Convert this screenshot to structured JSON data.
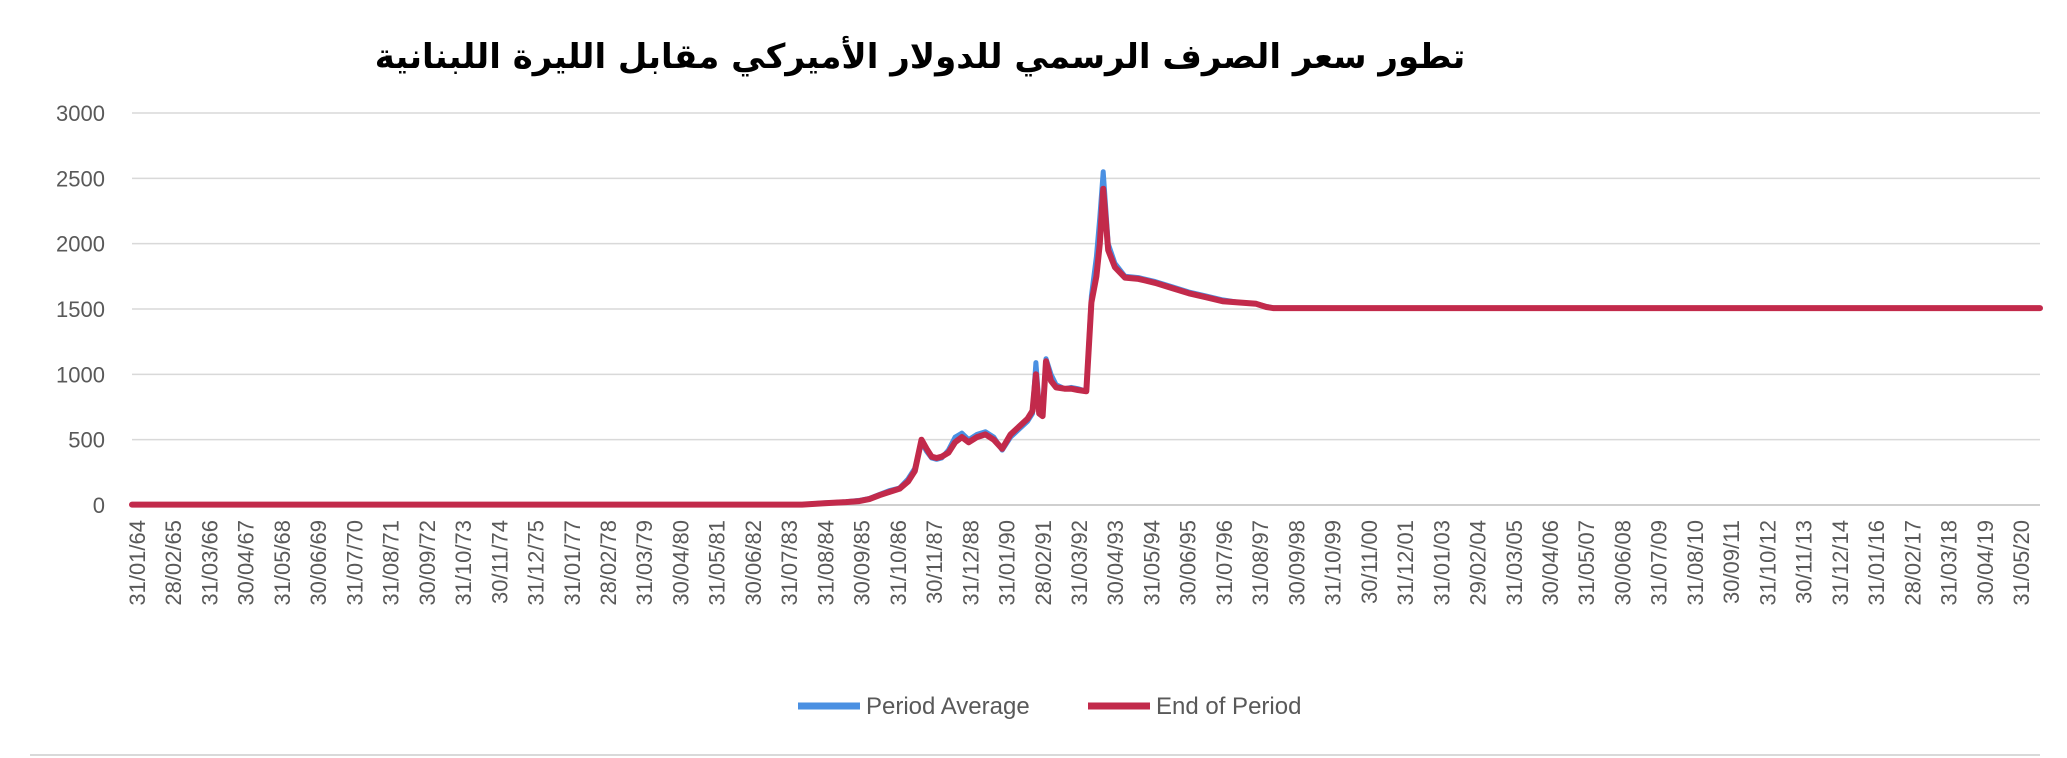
{
  "chart_data": {
    "type": "line",
    "title": "تطور سعر الصرف الرسمي للدولار الأميركي مقابل الليرة اللبنانية",
    "xlabel": "",
    "ylabel": "",
    "ylim": [
      0,
      3000
    ],
    "yticks": [
      "0",
      "500",
      "1000",
      "1500",
      "2000",
      "2500",
      "3000"
    ],
    "grid": true,
    "legend_position": "bottom",
    "xtick_labels": [
      "31/01/64",
      "28/02/65",
      "31/03/66",
      "30/04/67",
      "31/05/68",
      "30/06/69",
      "31/07/70",
      "31/08/71",
      "30/09/72",
      "31/10/73",
      "30/11/74",
      "31/12/75",
      "31/01/77",
      "28/02/78",
      "31/03/79",
      "30/04/80",
      "31/05/81",
      "30/06/82",
      "31/07/83",
      "31/08/84",
      "30/09/85",
      "31/10/86",
      "30/11/87",
      "31/12/88",
      "31/01/90",
      "28/02/91",
      "31/03/92",
      "30/04/93",
      "31/05/94",
      "30/06/95",
      "31/07/96",
      "31/08/97",
      "30/09/98",
      "31/10/99",
      "30/11/00",
      "31/12/01",
      "31/01/03",
      "29/02/04",
      "31/03/05",
      "30/04/06",
      "31/05/07",
      "30/06/08",
      "31/07/09",
      "31/08/10",
      "30/09/11",
      "31/10/12",
      "30/11/13",
      "31/12/14",
      "31/01/16",
      "28/02/17",
      "31/03/18",
      "30/04/19",
      "31/05/20"
    ],
    "series": [
      {
        "name": "Period Average",
        "color": "#4a90e2",
        "x": [
          1964.08,
          1984.0,
          1984.6,
          1985.0,
          1985.3,
          1985.7,
          1986.0,
          1986.3,
          1986.6,
          1986.9,
          1987.15,
          1987.35,
          1987.55,
          1987.7,
          1987.85,
          1988.0,
          1988.15,
          1988.35,
          1988.55,
          1988.75,
          1988.95,
          1989.2,
          1989.45,
          1989.7,
          1989.95,
          1990.2,
          1990.45,
          1990.7,
          1990.85,
          1990.95,
          1991.05,
          1991.15,
          1991.25,
          1991.4,
          1991.55,
          1991.8,
          1992.0,
          1992.2,
          1992.45,
          1992.6,
          1992.75,
          1992.85,
          1992.95,
          1993.1,
          1993.3,
          1993.6,
          1994.0,
          1994.5,
          1995.0,
          1995.5,
          1996.0,
          1996.5,
          1997.0,
          1997.5,
          1997.8,
          1998.0,
          2000.0,
          2005.0,
          2010.0,
          2015.0,
          2020.8
        ],
        "y": [
          3,
          3,
          15,
          20,
          25,
          35,
          50,
          80,
          110,
          130,
          200,
          280,
          480,
          410,
          360,
          350,
          360,
          420,
          520,
          550,
          500,
          540,
          560,
          520,
          420,
          520,
          580,
          640,
          700,
          1090,
          750,
          700,
          1120,
          1000,
          920,
          890,
          900,
          890,
          870,
          1600,
          1900,
          2200,
          2550,
          2000,
          1850,
          1750,
          1740,
          1710,
          1670,
          1630,
          1600,
          1570,
          1550,
          1540,
          1520,
          1510,
          1508,
          1508,
          1508,
          1508,
          1508
        ]
      },
      {
        "name": "End of Period",
        "color": "#c22a4b",
        "x": [
          1964.08,
          1984.0,
          1984.6,
          1985.0,
          1985.3,
          1985.7,
          1986.0,
          1986.3,
          1986.6,
          1986.9,
          1987.15,
          1987.35,
          1987.55,
          1987.7,
          1987.85,
          1988.0,
          1988.15,
          1988.35,
          1988.55,
          1988.75,
          1988.95,
          1989.2,
          1989.45,
          1989.7,
          1989.95,
          1990.2,
          1990.45,
          1990.7,
          1990.85,
          1990.95,
          1991.05,
          1991.15,
          1991.25,
          1991.4,
          1991.55,
          1991.8,
          1992.0,
          1992.2,
          1992.45,
          1992.6,
          1992.75,
          1992.85,
          1992.95,
          1993.1,
          1993.3,
          1993.6,
          1994.0,
          1994.5,
          1995.0,
          1995.5,
          1996.0,
          1996.5,
          1997.0,
          1997.5,
          1997.8,
          1998.0,
          2000.0,
          2005.0,
          2010.0,
          2015.0,
          2020.8
        ],
        "y": [
          3,
          3,
          12,
          18,
          22,
          30,
          45,
          75,
          100,
          125,
          180,
          260,
          500,
          430,
          370,
          360,
          370,
          400,
          480,
          520,
          480,
          520,
          540,
          500,
          430,
          540,
          600,
          660,
          720,
          1000,
          700,
          680,
          1100,
          950,
          900,
          890,
          890,
          880,
          870,
          1550,
          1750,
          2000,
          2420,
          1950,
          1820,
          1740,
          1730,
          1700,
          1660,
          1620,
          1590,
          1560,
          1550,
          1540,
          1515,
          1507,
          1507,
          1507,
          1507,
          1507,
          1507
        ]
      }
    ]
  }
}
